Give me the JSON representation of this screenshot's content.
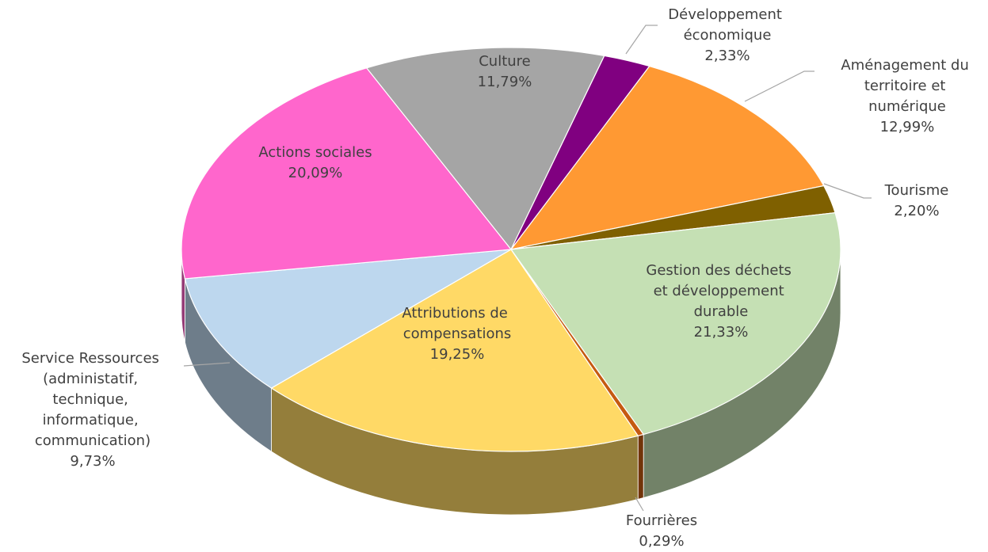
{
  "chart_data": {
    "type": "pie3d",
    "categories": [
      "Culture",
      "Développement économique",
      "Aménagement du territoire et numérique",
      "Tourisme",
      "Gestion des déchets et développement durable",
      "Fourrières",
      "Attributions de compensations",
      "Service Ressources (administatif, technique, informatique, communication)",
      "Actions sociales"
    ],
    "values": [
      11.79,
      2.33,
      12.99,
      2.2,
      21.33,
      0.29,
      19.25,
      9.73,
      20.09
    ],
    "value_labels": [
      "11,79%",
      "2,33%",
      "12,99%",
      "2,20%",
      "21,33%",
      "0,29%",
      "19,25%",
      "9,73%",
      "20,09%"
    ],
    "colors": [
      "#a5a5a5",
      "#800080",
      "#ff9933",
      "#7f6000",
      "#c5e0b4",
      "#c55a11",
      "#ffd966",
      "#bdd7ee",
      "#ff66cc"
    ]
  }
}
